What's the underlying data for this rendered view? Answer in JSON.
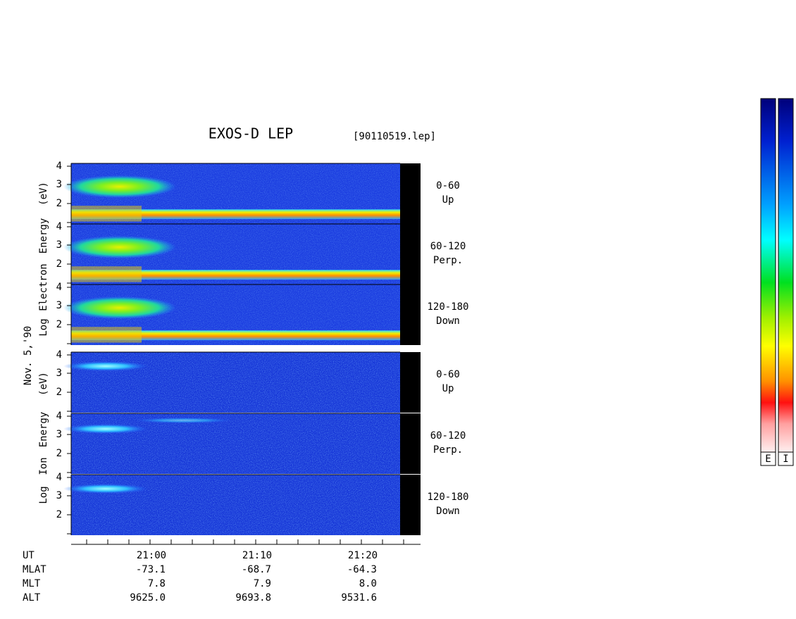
{
  "header": {
    "title": "EXOS-D LEP",
    "file": "[90110519.lep]"
  },
  "date": "Nov. 5,'90",
  "electron_axis": [
    "Log",
    "Electron",
    "Energy",
    "(eV)"
  ],
  "ion_axis": [
    "Log",
    "Ion",
    "Energy",
    "(eV)"
  ],
  "y_tick_labels": [
    "4",
    "3",
    "2"
  ],
  "panels": [
    {
      "angle": "0-60",
      "direction": "Up"
    },
    {
      "angle": "60-120",
      "direction": "Perp."
    },
    {
      "angle": "120-180",
      "direction": "Down"
    }
  ],
  "colorbar_labels": [
    "E",
    "I"
  ],
  "footer": {
    "row_labels": [
      "UT",
      "MLAT",
      "MLT",
      "ALT"
    ],
    "columns": [
      [
        "21:00",
        "-73.1",
        "7.8",
        "9625.0"
      ],
      [
        "21:10",
        "-68.7",
        "7.9",
        "9693.8"
      ],
      [
        "21:20",
        "-64.3",
        "8.0",
        "9531.6"
      ]
    ]
  }
}
